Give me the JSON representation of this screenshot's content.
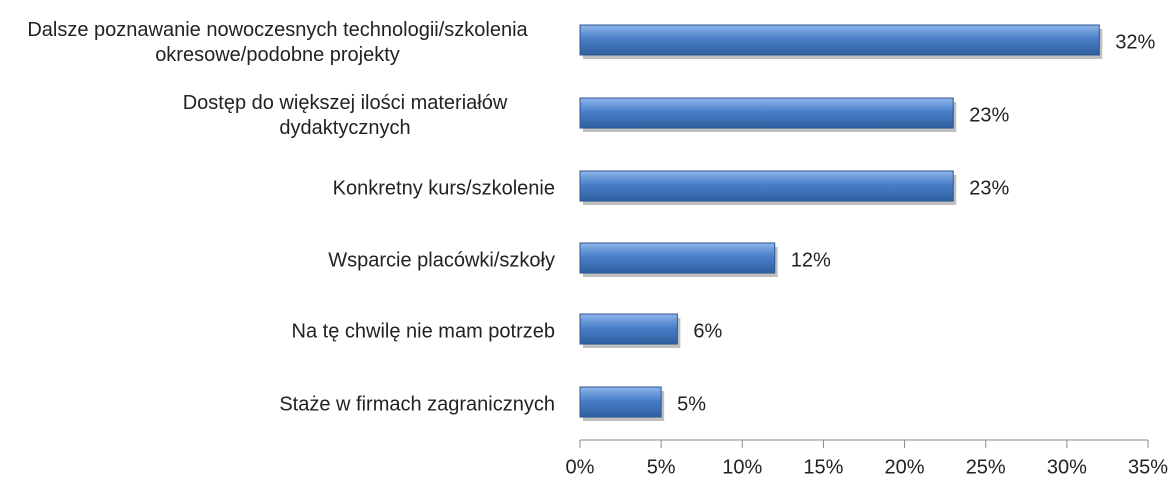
{
  "chart_data": {
    "type": "bar",
    "orientation": "horizontal",
    "categories": [
      "Dalsze poznawanie nowoczesnych technologii/szkolenia okresowe/podobne projekty",
      "Dostęp do większej ilości materiałów dydaktycznych",
      "Konkretny kurs/szkolenie",
      "Wsparcie placówki/szkoły",
      "Na tę chwilę nie mam potrzeb",
      "Staże w firmach zagranicznych"
    ],
    "values": [
      32,
      23,
      23,
      12,
      6,
      5
    ],
    "value_labels": [
      "32%",
      "23%",
      "23%",
      "12%",
      "6%",
      "5%"
    ],
    "color": "#4a7fc8",
    "xlim": [
      0,
      35
    ],
    "xticks": [
      {
        "value": 0,
        "label": "0%"
      },
      {
        "value": 5,
        "label": "5%"
      },
      {
        "value": 10,
        "label": "10%"
      },
      {
        "value": 15,
        "label": "15%"
      },
      {
        "value": 20,
        "label": "20%"
      },
      {
        "value": 25,
        "label": "25%"
      },
      {
        "value": 30,
        "label": "30%"
      },
      {
        "value": 35,
        "label": "35%"
      }
    ],
    "grid": false
  }
}
